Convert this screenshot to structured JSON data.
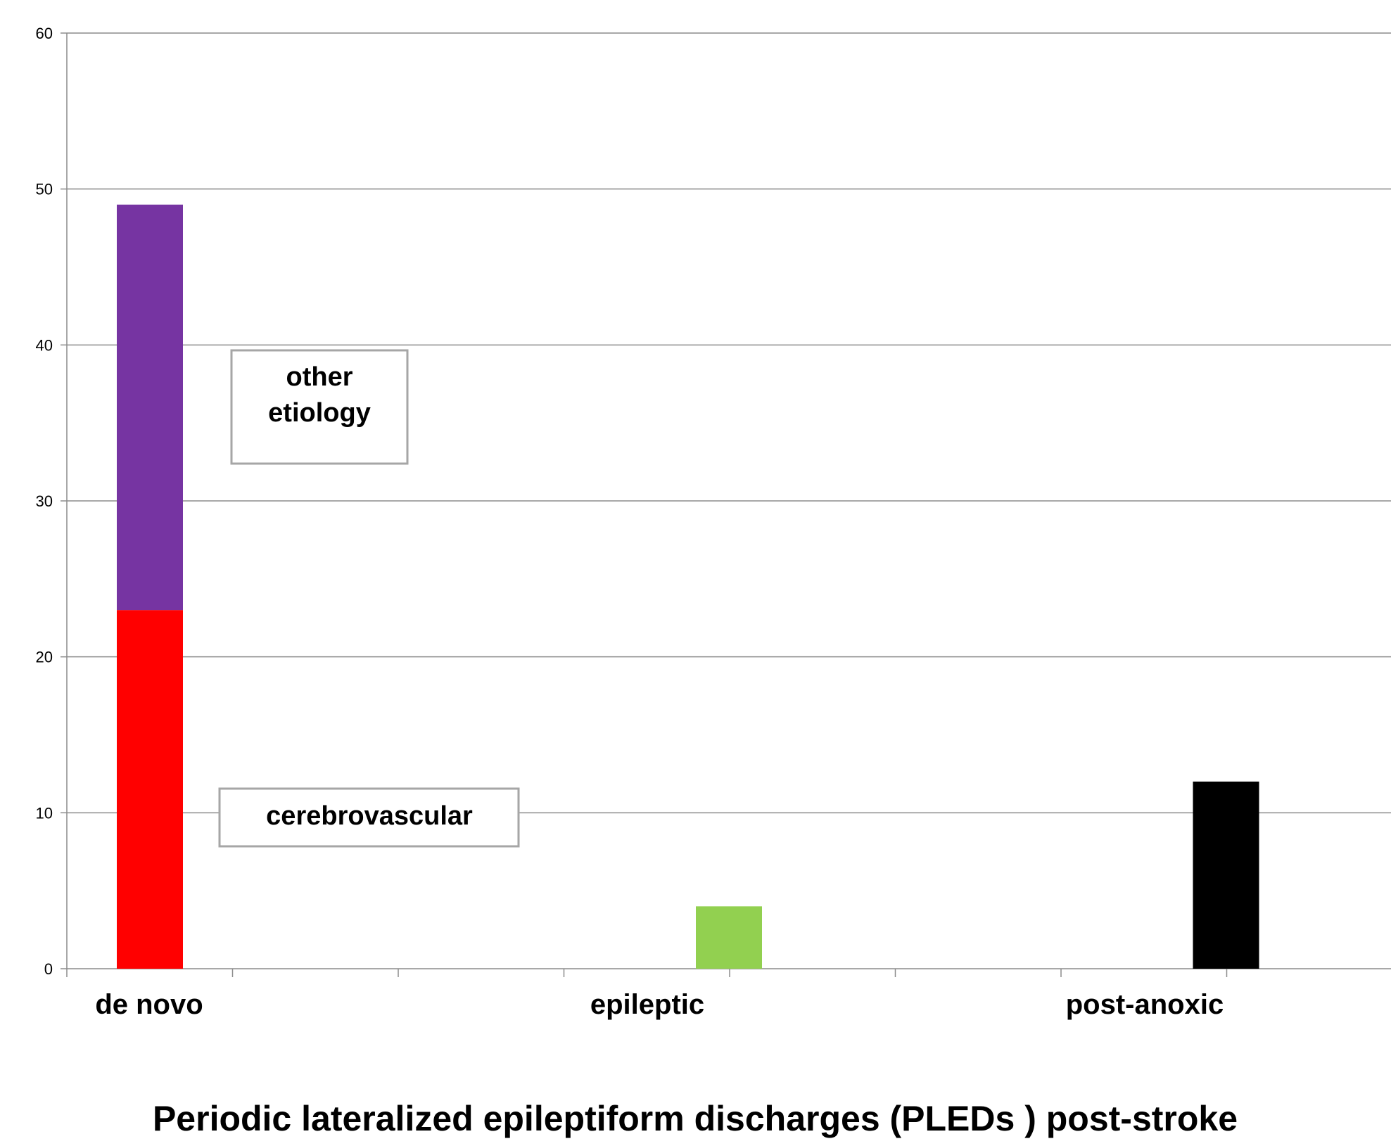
{
  "chart_data": {
    "type": "bar",
    "stacked": true,
    "title": "Periodic lateralized epileptiform  discharges (PLEDs ) post-stroke",
    "xlabel": "",
    "ylabel": "",
    "categories": [
      "de novo",
      "epileptic",
      "post-anoxic"
    ],
    "series": [
      {
        "name": "cerebrovascular",
        "color": "#ff0000",
        "values": [
          23,
          null,
          null
        ]
      },
      {
        "name": "other etiology",
        "color": "#7634a2",
        "values": [
          26,
          null,
          null
        ]
      },
      {
        "color": "#92d050",
        "values": [
          null,
          4,
          null
        ]
      },
      {
        "color": "#000000",
        "values": [
          null,
          null,
          12
        ]
      }
    ],
    "ylim": [
      0,
      60
    ],
    "yticks": [
      0,
      10,
      20,
      30,
      40,
      50,
      60
    ],
    "grid": true,
    "annotations": [
      {
        "id": "other-etiology",
        "lines": [
          "other",
          "etiology"
        ]
      },
      {
        "id": "cerebrovascular",
        "lines": [
          "cerebrovascular"
        ]
      }
    ]
  },
  "colors": {
    "gridline": "#8c8c8c",
    "axis": "#8c8c8c",
    "annotation_border": "#a6a6a6"
  }
}
